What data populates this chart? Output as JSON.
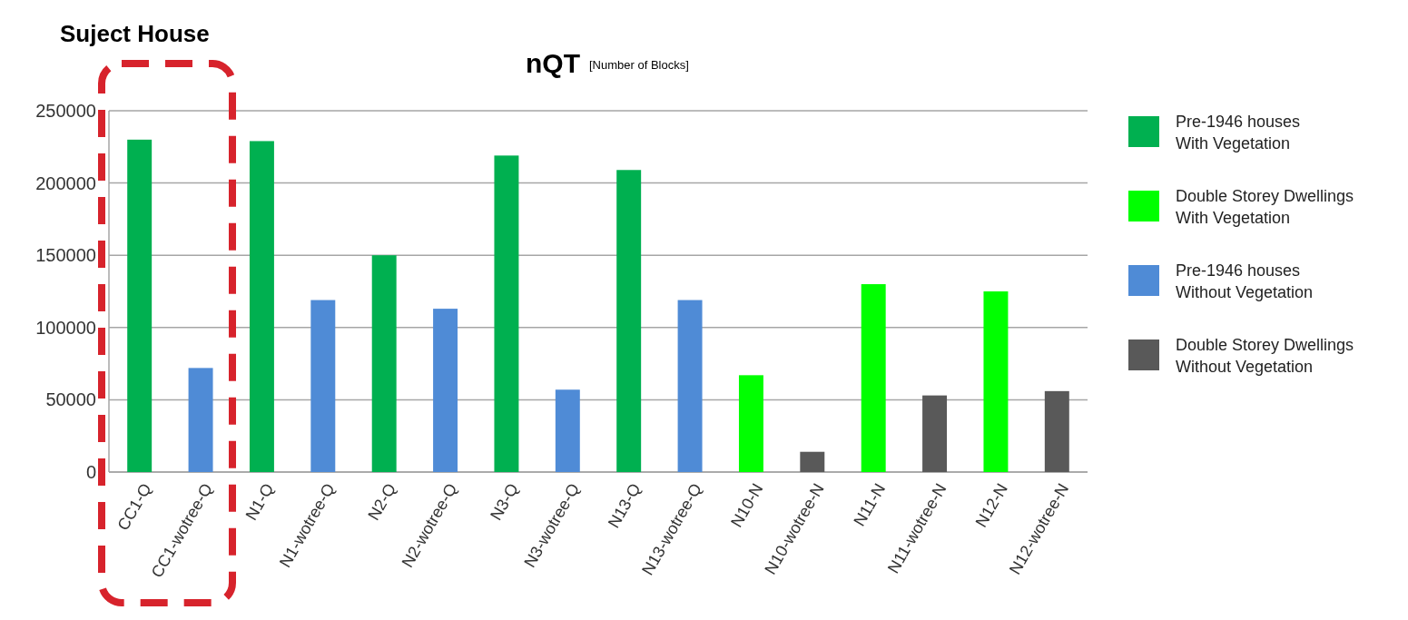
{
  "chart_data": {
    "type": "bar",
    "title": "nQT",
    "subtitle": "[Number of Blocks]",
    "categories": [
      "CC1-Q",
      "CC1-wotree-Q",
      "N1-Q",
      "N1-wotree-Q",
      "N2-Q",
      "N2-wotree-Q",
      "N3-Q",
      "N3-wotree-Q",
      "N13-Q",
      "N13-wotree-Q",
      "N10-N",
      "N10-wotree-N",
      "N11-N",
      "N11-wotree-N",
      "N12-N",
      "N12-wotree-N"
    ],
    "series": [
      {
        "name": "Pre-1946 houses\nWith Vegetation",
        "color": "#00b050",
        "values": [
          230000,
          null,
          229000,
          null,
          150000,
          null,
          219000,
          null,
          209000,
          null,
          null,
          null,
          null,
          null,
          null,
          null
        ]
      },
      {
        "name": "Double Storey Dwellings\nWith Vegetation",
        "color": "#00ff00",
        "values": [
          null,
          null,
          null,
          null,
          null,
          null,
          null,
          null,
          null,
          null,
          67000,
          null,
          130000,
          null,
          125000,
          null
        ]
      },
      {
        "name": "Pre-1946 houses\nWithout Vegetation",
        "color": "#4f8bd6",
        "values": [
          null,
          72000,
          null,
          119000,
          null,
          113000,
          null,
          57000,
          null,
          119000,
          null,
          null,
          null,
          null,
          null,
          null
        ]
      },
      {
        "name": "Double Storey Dwellings\nWithout Vegetation",
        "color": "#595959",
        "values": [
          null,
          null,
          null,
          null,
          null,
          null,
          null,
          null,
          null,
          null,
          null,
          14000,
          null,
          53000,
          null,
          56000
        ]
      }
    ],
    "ylim": [
      0,
      250000
    ],
    "yticks": [
      0,
      50000,
      100000,
      150000,
      200000,
      250000
    ],
    "grid": "y",
    "legend": "right",
    "annotations": [
      "Suject House"
    ]
  }
}
